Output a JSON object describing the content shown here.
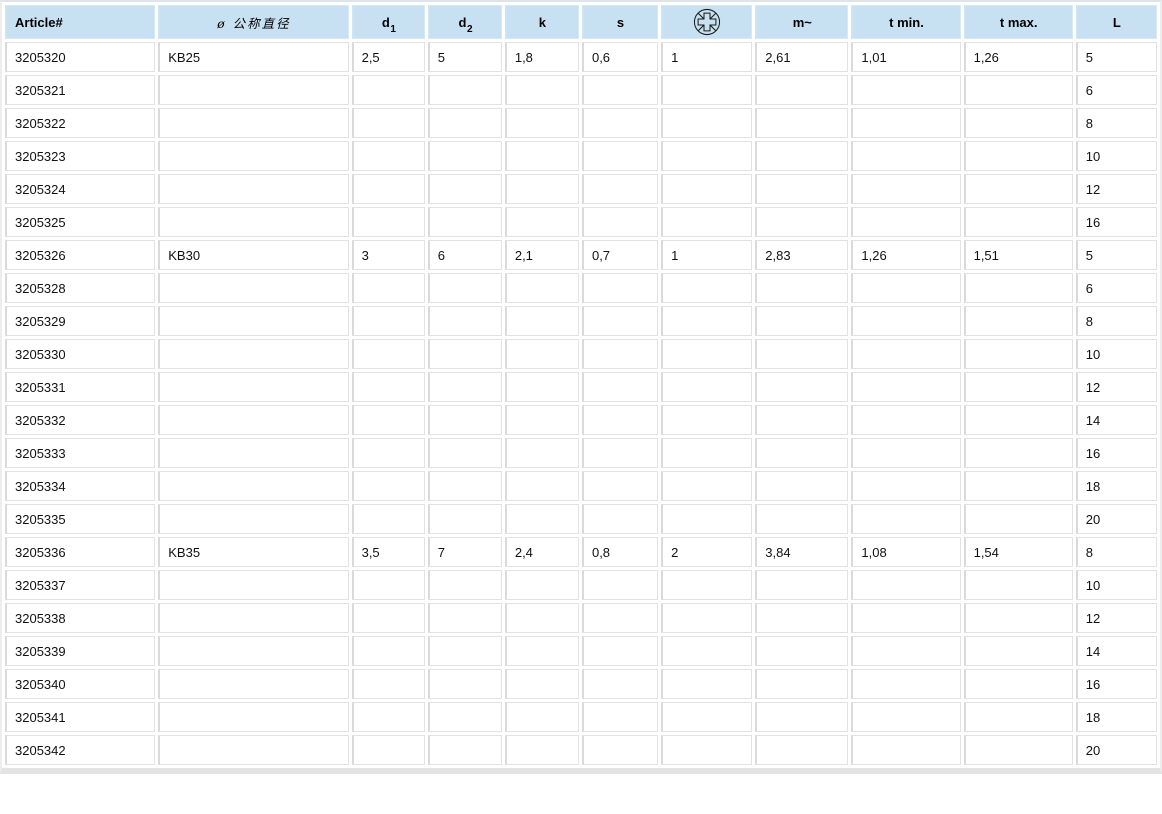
{
  "colors": {
    "header_bg": "#c8e1f2",
    "cell_border": "#e2e2e2",
    "bottom_bar": "#e3e3e3",
    "text": "#000000"
  },
  "table": {
    "columns": {
      "article": "Article#",
      "nominal": "ø 公称直径",
      "d1_base": "d",
      "d1_sub": "1",
      "d2_base": "d",
      "d2_sub": "2",
      "k": "k",
      "s": "s",
      "drive_icon": "pozidriv-cross-recess-icon",
      "m": "m~",
      "t_min": "t min.",
      "t_max": "t max.",
      "L": "L"
    },
    "row_keys": [
      "article",
      "nominal",
      "d1",
      "d2",
      "k",
      "s",
      "drive",
      "m",
      "t_min",
      "t_max",
      "L"
    ],
    "rows": [
      [
        "3205320",
        "KB25",
        "2,5",
        "5",
        "1,8",
        "0,6",
        "1",
        "2,61",
        "1,01",
        "1,26",
        "5"
      ],
      [
        "3205321",
        "",
        "",
        "",
        "",
        "",
        "",
        "",
        "",
        "",
        "6"
      ],
      [
        "3205322",
        "",
        "",
        "",
        "",
        "",
        "",
        "",
        "",
        "",
        "8"
      ],
      [
        "3205323",
        "",
        "",
        "",
        "",
        "",
        "",
        "",
        "",
        "",
        "10"
      ],
      [
        "3205324",
        "",
        "",
        "",
        "",
        "",
        "",
        "",
        "",
        "",
        "12"
      ],
      [
        "3205325",
        "",
        "",
        "",
        "",
        "",
        "",
        "",
        "",
        "",
        "16"
      ],
      [
        "3205326",
        "KB30",
        "3",
        "6",
        "2,1",
        "0,7",
        "1",
        "2,83",
        "1,26",
        "1,51",
        "5"
      ],
      [
        "3205328",
        "",
        "",
        "",
        "",
        "",
        "",
        "",
        "",
        "",
        "6"
      ],
      [
        "3205329",
        "",
        "",
        "",
        "",
        "",
        "",
        "",
        "",
        "",
        "8"
      ],
      [
        "3205330",
        "",
        "",
        "",
        "",
        "",
        "",
        "",
        "",
        "",
        "10"
      ],
      [
        "3205331",
        "",
        "",
        "",
        "",
        "",
        "",
        "",
        "",
        "",
        "12"
      ],
      [
        "3205332",
        "",
        "",
        "",
        "",
        "",
        "",
        "",
        "",
        "",
        "14"
      ],
      [
        "3205333",
        "",
        "",
        "",
        "",
        "",
        "",
        "",
        "",
        "",
        "16"
      ],
      [
        "3205334",
        "",
        "",
        "",
        "",
        "",
        "",
        "",
        "",
        "",
        "18"
      ],
      [
        "3205335",
        "",
        "",
        "",
        "",
        "",
        "",
        "",
        "",
        "",
        "20"
      ],
      [
        "3205336",
        "KB35",
        "3,5",
        "7",
        "2,4",
        "0,8",
        "2",
        "3,84",
        "1,08",
        "1,54",
        "8"
      ],
      [
        "3205337",
        "",
        "",
        "",
        "",
        "",
        "",
        "",
        "",
        "",
        "10"
      ],
      [
        "3205338",
        "",
        "",
        "",
        "",
        "",
        "",
        "",
        "",
        "",
        "12"
      ],
      [
        "3205339",
        "",
        "",
        "",
        "",
        "",
        "",
        "",
        "",
        "",
        "14"
      ],
      [
        "3205340",
        "",
        "",
        "",
        "",
        "",
        "",
        "",
        "",
        "",
        "16"
      ],
      [
        "3205341",
        "",
        "",
        "",
        "",
        "",
        "",
        "",
        "",
        "",
        "18"
      ],
      [
        "3205342",
        "",
        "",
        "",
        "",
        "",
        "",
        "",
        "",
        "",
        "20"
      ]
    ]
  }
}
